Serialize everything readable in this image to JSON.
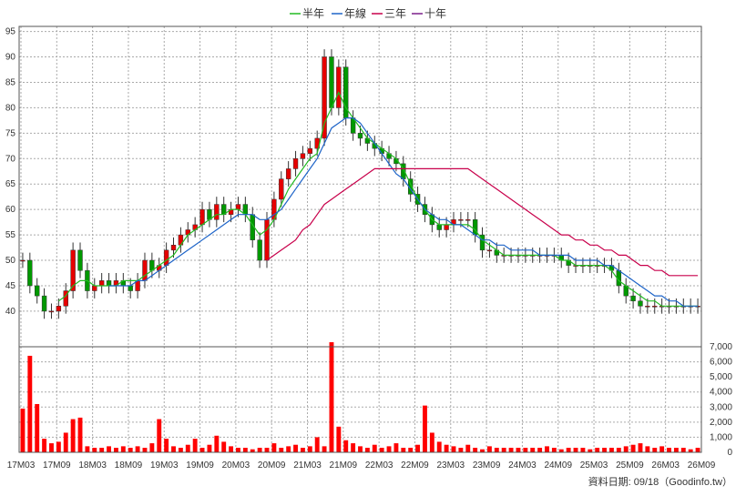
{
  "legend": {
    "items": [
      {
        "label": "半年",
        "color": "#22bb22"
      },
      {
        "label": "年線",
        "color": "#1e64c8"
      },
      {
        "label": "三年",
        "color": "#c8004b"
      },
      {
        "label": "十年",
        "color": "#7a1f8a"
      }
    ]
  },
  "source_label": "資料日期: 09/18（Goodinfo.tw）",
  "chart_data": [
    {
      "type": "candlestick",
      "title": "",
      "ylim": [
        33,
        96
      ],
      "y_ticks": [
        40,
        45,
        50,
        55,
        60,
        65,
        70,
        75,
        80,
        85,
        90,
        95
      ],
      "x_ticks": [
        "17M03",
        "17M09",
        "18M03",
        "18M09",
        "19M03",
        "19M09",
        "20M03",
        "20M09",
        "21M03",
        "21M09",
        "22M03",
        "22M09",
        "23M03",
        "23M09",
        "24M03",
        "24M09",
        "25M03",
        "25M09",
        "26M03",
        "26M09"
      ],
      "close": [
        50,
        45,
        43,
        40,
        40,
        41,
        44,
        52,
        48,
        44,
        45,
        46,
        45,
        46,
        45,
        44,
        46,
        50,
        48,
        49,
        52,
        53,
        55,
        56,
        57,
        60,
        58,
        61,
        59,
        60,
        61,
        59,
        54,
        50,
        58,
        62,
        66,
        68,
        70,
        71,
        72,
        74,
        90,
        80,
        88,
        78,
        75,
        74,
        73,
        72,
        71,
        70,
        69,
        66,
        63,
        61,
        59,
        57,
        56,
        57,
        58,
        58,
        58,
        55,
        52,
        52,
        51,
        51,
        51,
        51,
        51,
        51,
        51,
        51,
        51,
        50,
        49,
        49,
        49,
        49,
        49,
        49,
        48,
        45,
        43,
        42,
        41,
        41,
        41,
        41,
        41,
        41,
        41,
        41,
        41
      ],
      "series": [
        {
          "name": "半年",
          "color": "#22bb22",
          "values": [
            null,
            null,
            null,
            null,
            null,
            42,
            43,
            45,
            46,
            46,
            45,
            45,
            45,
            45,
            46,
            46,
            46,
            47,
            48,
            49,
            50,
            51,
            53,
            55,
            56,
            57,
            58,
            59,
            59,
            60,
            60,
            59,
            57,
            55,
            56,
            58,
            61,
            64,
            66,
            68,
            70,
            71,
            77,
            80,
            83,
            80,
            78,
            76,
            74,
            73,
            72,
            71,
            70,
            68,
            65,
            62,
            60,
            58,
            57,
            57,
            57,
            57,
            57,
            56,
            54,
            53,
            52,
            51,
            51,
            51,
            51,
            51,
            51,
            51,
            51,
            50,
            50,
            49,
            49,
            49,
            49,
            49,
            48,
            46,
            45,
            44,
            43,
            42,
            42,
            41,
            41,
            41,
            41,
            41,
            41
          ]
        },
        {
          "name": "年線",
          "color": "#1e64c8",
          "values": [
            null,
            null,
            null,
            null,
            null,
            null,
            null,
            null,
            null,
            null,
            null,
            null,
            45,
            45,
            45,
            45,
            46,
            46,
            47,
            48,
            49,
            50,
            51,
            52,
            53,
            54,
            55,
            56,
            57,
            58,
            59,
            59,
            59,
            58,
            58,
            59,
            60,
            62,
            64,
            66,
            68,
            70,
            73,
            76,
            77,
            78,
            78,
            77,
            75,
            73,
            71,
            69,
            67,
            66,
            64,
            62,
            60,
            59,
            58,
            58,
            57,
            57,
            56,
            55,
            54,
            54,
            53,
            53,
            52,
            52,
            52,
            52,
            51,
            51,
            51,
            51,
            51,
            50,
            50,
            50,
            50,
            49,
            49,
            48,
            47,
            46,
            45,
            44,
            43,
            43,
            42,
            42,
            41,
            41,
            41
          ]
        },
        {
          "name": "三年",
          "color": "#c8004b",
          "values": [
            null,
            null,
            null,
            null,
            null,
            null,
            null,
            null,
            null,
            null,
            null,
            null,
            null,
            null,
            null,
            null,
            null,
            null,
            null,
            null,
            null,
            null,
            null,
            null,
            null,
            null,
            null,
            null,
            null,
            null,
            null,
            null,
            null,
            null,
            50,
            51,
            52,
            53,
            54,
            56,
            57,
            59,
            61,
            62,
            63,
            64,
            65,
            66,
            67,
            68,
            68,
            68,
            68,
            68,
            68,
            68,
            68,
            68,
            68,
            68,
            68,
            68,
            68,
            67,
            66,
            65,
            64,
            63,
            62,
            61,
            60,
            59,
            58,
            57,
            56,
            55,
            55,
            54,
            54,
            53,
            53,
            52,
            52,
            51,
            51,
            50,
            49,
            49,
            48,
            48,
            47,
            47,
            47,
            47,
            47
          ]
        }
      ]
    },
    {
      "type": "bar",
      "title": "",
      "ylim": [
        0,
        7000
      ],
      "y_ticks": [
        0,
        1000,
        2000,
        3000,
        4000,
        5000,
        6000,
        7000
      ],
      "y_tick_labels": [
        "0",
        "1,000",
        "2,000",
        "3,000",
        "4,000",
        "5,000",
        "6,000",
        "7,000"
      ],
      "values": [
        2900,
        6400,
        3200,
        900,
        600,
        700,
        1300,
        2200,
        2300,
        400,
        300,
        300,
        400,
        300,
        400,
        300,
        400,
        300,
        600,
        2200,
        900,
        400,
        300,
        500,
        900,
        300,
        500,
        1100,
        700,
        400,
        300,
        300,
        200,
        300,
        300,
        600,
        300,
        400,
        500,
        300,
        400,
        1000,
        400,
        7300,
        1700,
        800,
        600,
        400,
        300,
        500,
        300,
        400,
        600,
        300,
        300,
        500,
        3100,
        1300,
        700,
        500,
        400,
        300,
        500,
        300,
        200,
        400,
        300,
        300,
        300,
        300,
        300,
        300,
        300,
        400,
        300,
        200,
        300,
        300,
        300,
        200,
        300,
        300,
        300,
        300,
        400,
        500,
        600,
        400,
        300,
        400,
        300,
        300,
        300,
        200,
        300
      ]
    }
  ]
}
